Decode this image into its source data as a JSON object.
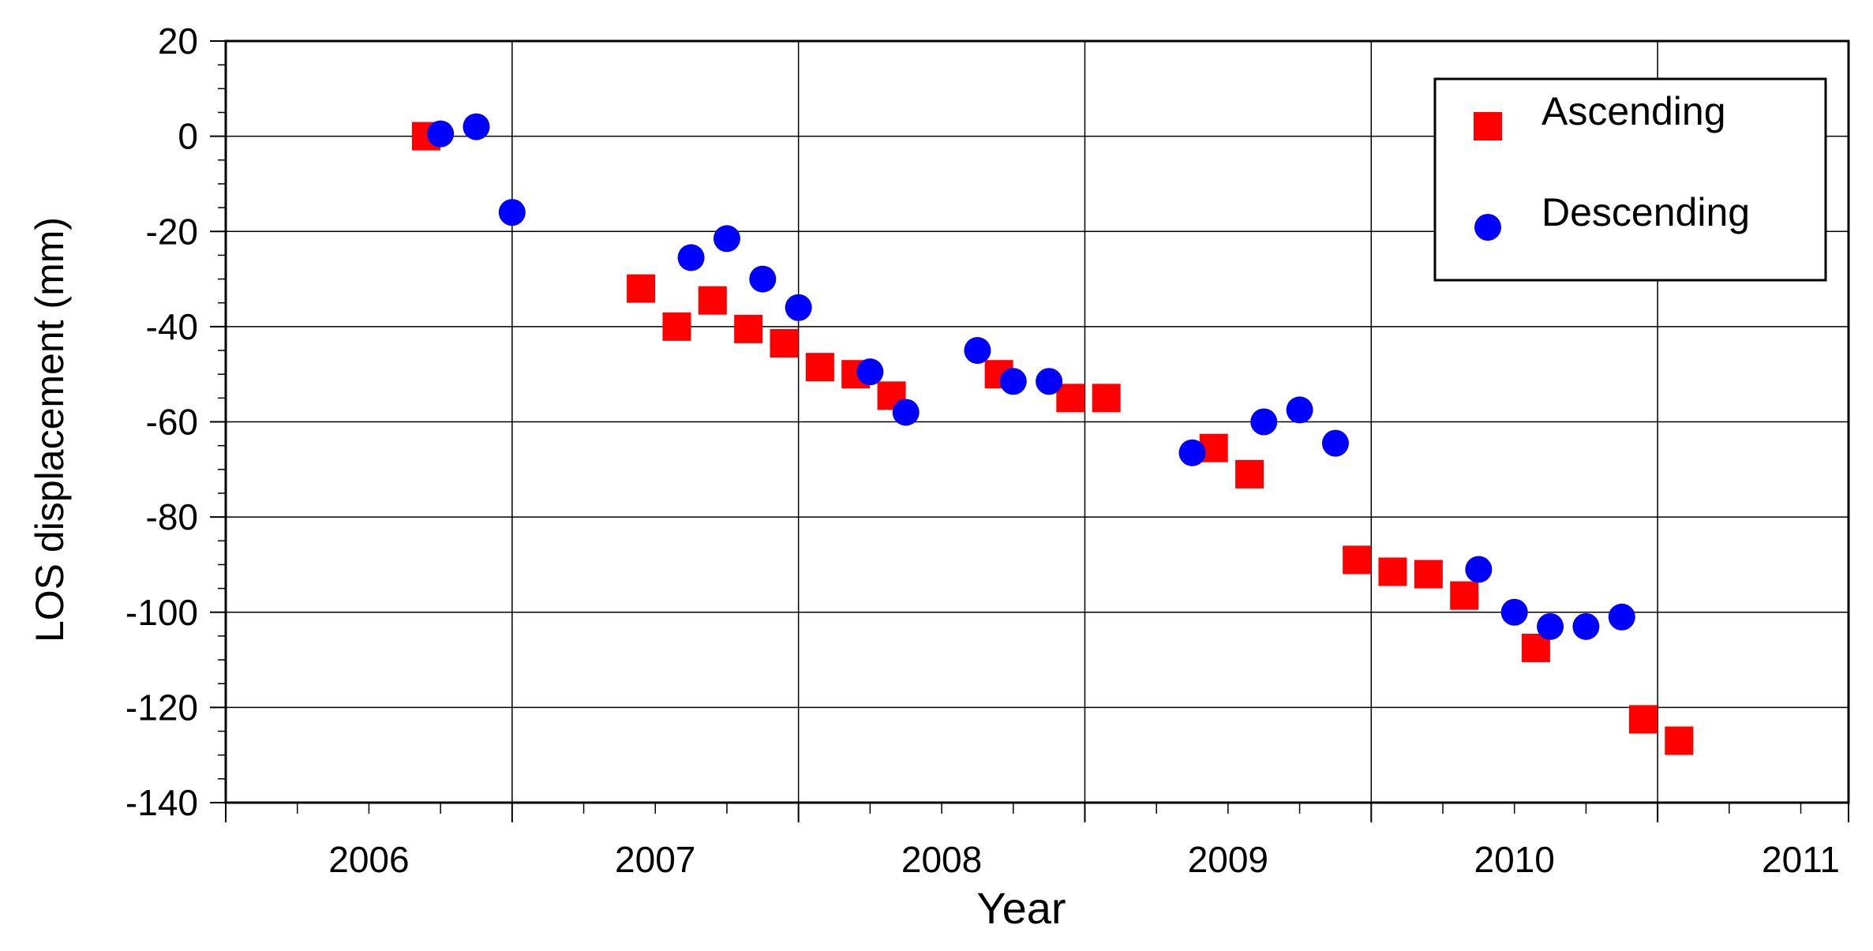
{
  "chart_data": {
    "type": "scatter",
    "xlabel": "Year",
    "ylabel": "LOS displacement (mm)",
    "xlim": [
      2006,
      2011.6667
    ],
    "ylim": [
      -140,
      20
    ],
    "x_ticks": [
      "2006",
      "2007",
      "2008",
      "2009",
      "2010",
      "2011"
    ],
    "y_ticks": [
      "20",
      "0",
      "-20",
      "-40",
      "-60",
      "-80",
      "-100",
      "-120",
      "-140"
    ],
    "grid": true,
    "legend_position": "top-right",
    "series": [
      {
        "name": "Ascending",
        "marker": "square",
        "color": "#ff0000",
        "points": [
          {
            "x": 2006.7,
            "y": 0
          },
          {
            "x": 2007.45,
            "y": -32
          },
          {
            "x": 2007.575,
            "y": -40
          },
          {
            "x": 2007.7,
            "y": -34.5
          },
          {
            "x": 2007.825,
            "y": -40.5
          },
          {
            "x": 2007.95,
            "y": -43.5
          },
          {
            "x": 2008.075,
            "y": -48.5
          },
          {
            "x": 2008.2,
            "y": -50
          },
          {
            "x": 2008.325,
            "y": -54.5
          },
          {
            "x": 2008.7,
            "y": -50
          },
          {
            "x": 2008.95,
            "y": -55
          },
          {
            "x": 2009.075,
            "y": -55
          },
          {
            "x": 2009.45,
            "y": -65.5
          },
          {
            "x": 2009.575,
            "y": -71
          },
          {
            "x": 2009.95,
            "y": -89
          },
          {
            "x": 2010.075,
            "y": -91.5
          },
          {
            "x": 2010.2,
            "y": -92
          },
          {
            "x": 2010.325,
            "y": -96.5
          },
          {
            "x": 2010.575,
            "y": -107.5
          },
          {
            "x": 2010.95,
            "y": -122.5
          },
          {
            "x": 2011.075,
            "y": -127
          }
        ]
      },
      {
        "name": "Descending",
        "marker": "circle",
        "color": "#0000ff",
        "points": [
          {
            "x": 2006.75,
            "y": 0.5
          },
          {
            "x": 2006.875,
            "y": 2
          },
          {
            "x": 2007.0,
            "y": -16
          },
          {
            "x": 2007.625,
            "y": -25.5
          },
          {
            "x": 2007.75,
            "y": -21.5
          },
          {
            "x": 2007.875,
            "y": -30
          },
          {
            "x": 2008.0,
            "y": -36
          },
          {
            "x": 2008.25,
            "y": -49.5
          },
          {
            "x": 2008.375,
            "y": -58
          },
          {
            "x": 2008.625,
            "y": -45
          },
          {
            "x": 2008.75,
            "y": -51.5
          },
          {
            "x": 2008.875,
            "y": -51.5
          },
          {
            "x": 2009.375,
            "y": -66.5
          },
          {
            "x": 2009.625,
            "y": -60
          },
          {
            "x": 2009.75,
            "y": -57.5
          },
          {
            "x": 2009.875,
            "y": -64.5
          },
          {
            "x": 2010.375,
            "y": -91
          },
          {
            "x": 2010.5,
            "y": -100
          },
          {
            "x": 2010.625,
            "y": -103
          },
          {
            "x": 2010.75,
            "y": -103
          },
          {
            "x": 2010.875,
            "y": -101
          }
        ]
      }
    ]
  }
}
